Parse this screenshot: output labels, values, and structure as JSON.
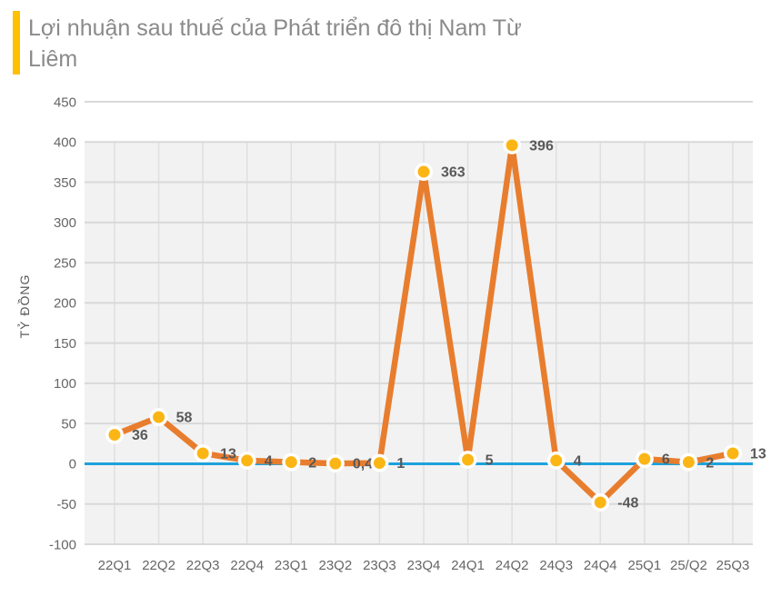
{
  "title": {
    "line1": "Lợi nhuận sau thuế của Phát triển đô thị Nam Từ",
    "line2": "Liêm",
    "full": "Lợi nhuận sau thuế của Phát triển đô thị Nam Từ Liêm"
  },
  "colors": {
    "accent_bar": "#FFC000",
    "title_text": "#8a8a8a",
    "series_line": "#e87d2e",
    "marker_fill": "#fbb616",
    "marker_ring": "#ffffff",
    "zero_line": "#1ba2dc",
    "plot_band": "#f2f2f2",
    "h_gridline": "#d9d9d9",
    "v_gridline": "#dfdfdf",
    "tick_text": "#666666",
    "value_label_text": "#595959"
  },
  "chart_data": {
    "type": "line",
    "title": "Lợi nhuận sau thuế của Phát triển đô thị Nam Từ Liêm",
    "ylabel": "TỶ ĐỒNG",
    "xlabel": "",
    "categories": [
      "22Q1",
      "22Q2",
      "22Q3",
      "22Q4",
      "23Q1",
      "23Q2",
      "23Q3",
      "23Q4",
      "24Q1",
      "24Q2",
      "24Q3",
      "24Q4",
      "25Q1",
      "25/Q2",
      "25Q3"
    ],
    "values": [
      36,
      58,
      13,
      4,
      2,
      0.4,
      1,
      363,
      5,
      396,
      4,
      -48,
      6,
      2,
      13
    ],
    "value_labels": [
      "36",
      "58",
      "13",
      "4",
      "2",
      "0,4",
      "1",
      "363",
      "5",
      "396",
      "4",
      "-48",
      "6",
      "2",
      "13"
    ],
    "ylim": [
      -100,
      450
    ],
    "yticks": [
      450,
      400,
      350,
      300,
      250,
      200,
      150,
      100,
      50,
      0,
      -50,
      -100
    ],
    "grid": true,
    "legend": false,
    "zero_line": true
  }
}
